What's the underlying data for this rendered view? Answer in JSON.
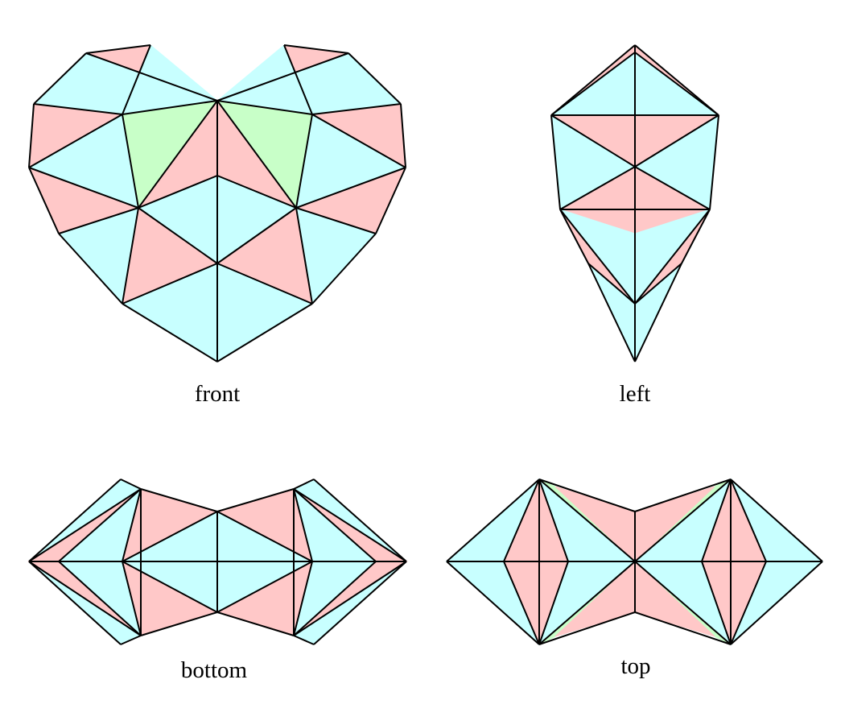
{
  "colors": {
    "pink": "#ffc8c8",
    "cyan": "#c8ffff",
    "green": "#c8ffc8",
    "edge": "#000000",
    "background": "#ffffff"
  },
  "views": {
    "front": {
      "label": "front"
    },
    "left": {
      "label": "left"
    },
    "bottom": {
      "label": "bottom"
    },
    "top": {
      "label": "top"
    }
  }
}
